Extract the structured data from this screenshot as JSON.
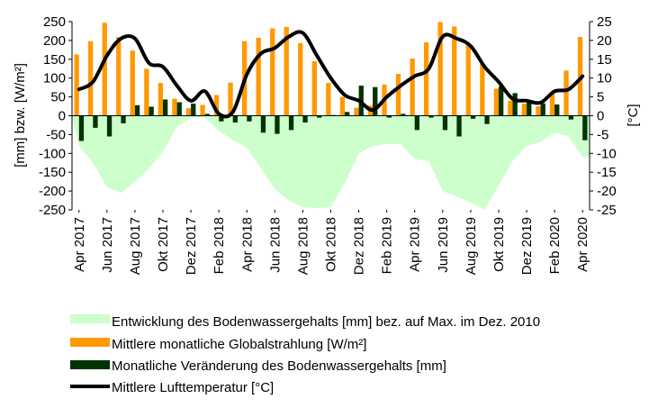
{
  "chart_data": {
    "type": "bar",
    "categories": [
      "Apr 2017",
      "Mai 2017",
      "Jun 2017",
      "Jul 2017",
      "Aug 2017",
      "Sep 2017",
      "Okt 2017",
      "Nov 2017",
      "Dez 2017",
      "Jan 2018",
      "Feb 2018",
      "Mär 2018",
      "Apr 2018",
      "Mai 2018",
      "Jun 2018",
      "Jul 2018",
      "Aug 2018",
      "Sep 2018",
      "Okt 2018",
      "Nov 2018",
      "Dez 2018",
      "Jan 2019",
      "Feb 2019",
      "Mär 2019",
      "Apr 2019",
      "Mai 2019",
      "Jun 2019",
      "Jul 2019",
      "Aug 2019",
      "Sep 2019",
      "Okt 2019",
      "Nov 2019",
      "Dez 2019",
      "Jan 2020",
      "Feb 2020",
      "Mär 2020",
      "Apr 2020"
    ],
    "tick_labels": [
      "Apr 2017",
      "Jun 2017",
      "Aug 2017",
      "Okt 2017",
      "Dez 2017",
      "Feb 2018",
      "Apr 2018",
      "Jun 2018",
      "Aug 2018",
      "Okt 2018",
      "Dez 2018",
      "Feb 2019",
      "Apr 2019",
      "Jun 2019",
      "Aug 2019",
      "Okt 2019",
      "Dez 2019",
      "Feb 2020",
      "Apr 2020"
    ],
    "ylabel": "[mm] bzw. [W/m²]",
    "y2label": "[°C]",
    "ylim": [
      -250,
      250
    ],
    "yticks": [
      -250,
      -200,
      -150,
      -100,
      -50,
      0,
      50,
      100,
      150,
      200,
      250
    ],
    "y2lim": [
      -25,
      25
    ],
    "y2ticks": [
      -25,
      -20,
      -15,
      -10,
      -5,
      0,
      5,
      10,
      15,
      20,
      25
    ],
    "grid": false,
    "legend_position": "bottom",
    "series": [
      {
        "name": "Entwicklung des Bodenwassergehalts [mm] bez. auf Max. im Dez. 2010",
        "type": "area",
        "color": "#ccffcc",
        "values": [
          -80,
          -125,
          -190,
          -205,
          -175,
          -140,
          -95,
          -30,
          -5,
          -5,
          -40,
          -65,
          -85,
          -140,
          -195,
          -225,
          -243,
          -245,
          -243,
          -180,
          -100,
          -80,
          -75,
          -75,
          -115,
          -120,
          -200,
          -215,
          -230,
          -250,
          -185,
          -120,
          -80,
          -70,
          -45,
          -55,
          -110
        ]
      },
      {
        "name": "Mittlere monatliche Globalstrahlung [W/m²]",
        "type": "bar",
        "color": "#ff9900",
        "values": [
          163,
          198,
          247,
          209,
          173,
          125,
          87,
          45,
          20,
          29,
          55,
          88,
          198,
          207,
          232,
          236,
          193,
          145,
          87,
          50,
          21,
          27,
          83,
          111,
          152,
          195,
          249,
          237,
          192,
          138,
          72,
          40,
          32,
          25,
          60,
          120,
          209
        ]
      },
      {
        "name": "Monatliche Veränderung des Bodenwassergehalts [mm]",
        "type": "bar",
        "color": "#003300",
        "values": [
          -67,
          -32,
          -55,
          -20,
          28,
          24,
          43,
          36,
          32,
          5,
          -15,
          -18,
          -15,
          -45,
          -48,
          -38,
          -18,
          -5,
          2,
          10,
          80,
          76,
          -5,
          5,
          -38,
          -5,
          -38,
          -55,
          -8,
          -22,
          78,
          60,
          40,
          33,
          30,
          -10,
          -65
        ]
      },
      {
        "name": "Mittlere Lufttemperatur [°C]",
        "type": "line",
        "axis": "right",
        "color": "#000000",
        "values": [
          7,
          9,
          16,
          20.5,
          20.5,
          14,
          13,
          8,
          4,
          6.5,
          0.5,
          1,
          11,
          16.5,
          18,
          21,
          22,
          16,
          10,
          5.5,
          4,
          1.5,
          5,
          8,
          10.5,
          12.5,
          21,
          20.5,
          18.5,
          13,
          9,
          4.5,
          4,
          3.5,
          6.5,
          7,
          10.5
        ]
      }
    ]
  }
}
